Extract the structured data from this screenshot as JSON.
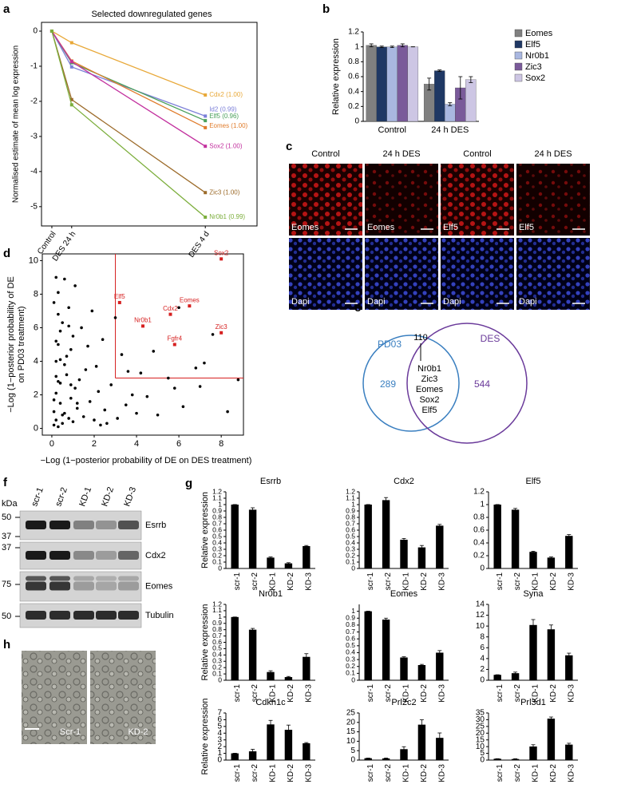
{
  "panel_letters": [
    "a",
    "b",
    "c",
    "d",
    "e",
    "f",
    "g",
    "h"
  ],
  "chart_data": [
    {
      "type": "line",
      "title": "Selected downregulated genes",
      "y_label": "Normalised estimate of mean log expression",
      "categories": [
        "Control",
        "DES 24 h",
        "DES 4 d"
      ],
      "ylim": [
        -5.55,
        0.25
      ],
      "yticks": [
        0,
        -1,
        -2,
        -3,
        -4,
        -5
      ],
      "series": [
        {
          "name": "Cdx2 (1.00)",
          "color": "#e8a838",
          "values": [
            0,
            -0.33,
            -1.82
          ]
        },
        {
          "name": "Id2 (0.99)",
          "color": "#7b7fd8",
          "values": [
            0,
            -1.02,
            -2.42
          ]
        },
        {
          "name": "Elf5 (0.96)",
          "color": "#4aa05a",
          "values": [
            0,
            -0.9,
            -2.55
          ]
        },
        {
          "name": "Eomes (1.00)",
          "color": "#e07b2a",
          "values": [
            0,
            -0.85,
            -2.75
          ]
        },
        {
          "name": "Sox2 (1.00)",
          "color": "#c2309e",
          "values": [
            0,
            -0.87,
            -3.28
          ]
        },
        {
          "name": "Zic3 (1.00)",
          "color": "#9c6b2a",
          "values": [
            0,
            -1.95,
            -4.6
          ]
        },
        {
          "name": "Nr0b1 (0.99)",
          "color": "#7cae3c",
          "values": [
            0,
            -2.1,
            -5.3
          ]
        }
      ]
    },
    {
      "type": "grouped-bar",
      "y_label": "Relative expression",
      "categories": [
        "Control",
        "24 h DES"
      ],
      "ylim": [
        0,
        1.2
      ],
      "yticks": [
        0,
        0.2,
        0.4,
        0.6,
        0.8,
        1,
        1.2
      ],
      "series": [
        {
          "name": "Eomes",
          "color": "#808080",
          "values": [
            1.02,
            0.5
          ],
          "errors": [
            0.02,
            0.08
          ]
        },
        {
          "name": "Elf5",
          "color": "#1f3864",
          "values": [
            1.0,
            0.68
          ],
          "errors": [
            0.01,
            0.01
          ]
        },
        {
          "name": "Nr0b1",
          "color": "#a9b7e0",
          "values": [
            1.0,
            0.23
          ],
          "errors": [
            0.01,
            0.02
          ]
        },
        {
          "name": "Zic3",
          "color": "#7a5a9a",
          "values": [
            1.02,
            0.45
          ],
          "errors": [
            0.02,
            0.15
          ]
        },
        {
          "name": "Sox2",
          "color": "#cdc6e4",
          "values": [
            1.0,
            0.56
          ],
          "errors": [
            0,
            0.04
          ]
        }
      ]
    },
    {
      "type": "scatter",
      "x_label": "−Log (1−posterior probability of DE on DES treatment)",
      "y_label": [
        "−Log (1−posterior probability of DE",
        "on PD03 treatment)"
      ],
      "xlim": [
        -0.45,
        9.05
      ],
      "ylim": [
        -0.4,
        10.4
      ],
      "xticks": [
        0,
        2,
        4,
        6,
        8
      ],
      "yticks": [
        0,
        2,
        4,
        6,
        8,
        10
      ],
      "threshold": 3,
      "threshold_color": "#d62020",
      "series": [
        {
          "color": "#000000",
          "x": [
            0.1,
            0.2,
            0.3,
            0.1,
            0.5,
            0.4,
            0.8,
            0.2,
            0.6,
            1.0,
            1.2,
            0.3,
            0.9,
            1.5,
            0.7,
            1.1,
            2.0,
            0.4,
            1.8,
            2.5,
            0.2,
            0.6,
            1.3,
            3.1,
            0.5,
            2.2,
            0.1,
            0.9,
            1.6,
            3.5,
            0.3,
            4.0,
            1.0,
            2.8,
            0.2,
            0.7,
            5.0,
            1.4,
            3.8,
            0.4,
            6.2,
            2.1,
            0.8,
            4.5,
            1.7,
            7.0,
            0.3,
            3.3,
            5.5,
            2.4,
            0.1,
            0.9,
            8.8,
            6.8,
            0.5,
            1.2,
            4.2,
            7.6,
            3.0,
            2.6,
            0.2,
            0.6,
            1.9,
            5.8,
            8.3,
            0.3,
            1.1,
            4.8,
            7.2,
            6.0,
            0.4,
            0.8,
            2.3,
            3.6,
            0.2
          ],
          "values": [
            0.2,
            0.5,
            0.1,
            1.0,
            0.3,
            1.5,
            0.6,
            2.1,
            0.9,
            0.4,
            1.2,
            2.8,
            1.8,
            0.7,
            3.2,
            2.4,
            0.5,
            4.1,
            1.6,
            1.1,
            5.2,
            3.8,
            2.9,
            0.6,
            6.3,
            2.2,
            7.5,
            4.7,
            3.5,
            1.4,
            6.8,
            0.9,
            5.5,
            2.6,
            3.1,
            4.3,
            0.8,
            6.0,
            2.0,
            5.8,
            1.3,
            3.7,
            7.2,
            1.9,
            4.9,
            2.5,
            8.1,
            4.4,
            3.0,
            5.3,
            1.7,
            2.6,
            2.9,
            3.6,
            0.8,
            1.5,
            3.3,
            5.6,
            6.6,
            0.3,
            4.0,
            8.9,
            7.0,
            2.4,
            1.0,
            5.0,
            8.5,
            4.6,
            3.9,
            7.2,
            2.7,
            6.1,
            0.2,
            3.4,
            9.0
          ]
        },
        {
          "color": "#d62020",
          "labels": [
            "Sox2",
            "Elf5",
            "Eomes",
            "Cdx2",
            "Nr0b1",
            "Zic3",
            "Fgfr4"
          ],
          "x": [
            8.0,
            3.2,
            6.5,
            5.6,
            4.3,
            8.0,
            5.8
          ],
          "values": [
            10.1,
            7.5,
            7.3,
            6.8,
            6.1,
            5.7,
            5.0
          ]
        }
      ]
    },
    {
      "type": "bar",
      "title": "Esrrb",
      "y_label": "Relative expression",
      "categories": [
        "scr-1",
        "scr-2",
        "KD-1",
        "KD-2",
        "KD-3"
      ],
      "color": "#000000",
      "values": [
        1.0,
        0.92,
        0.17,
        0.08,
        0.35
      ],
      "errors": [
        0,
        0.03,
        0.01,
        0.01,
        0.01
      ],
      "ylim": [
        0,
        1.2
      ],
      "yticks": [
        0,
        0.1,
        0.2,
        0.3,
        0.4,
        0.5,
        0.6,
        0.7,
        0.8,
        0.9,
        1,
        1.1,
        1.2
      ]
    },
    {
      "type": "bar",
      "title": "Cdx2",
      "categories": [
        "scr-1",
        "scr-2",
        "KD-1",
        "KD-2",
        "KD-3"
      ],
      "color": "#000000",
      "values": [
        1.0,
        1.07,
        0.45,
        0.33,
        0.67
      ],
      "errors": [
        0,
        0.04,
        0.02,
        0.03,
        0.02
      ],
      "ylim": [
        0,
        1.2
      ],
      "yticks": [
        0,
        0.1,
        0.2,
        0.3,
        0.4,
        0.5,
        0.6,
        0.7,
        0.8,
        0.9,
        1,
        1.1,
        1.2
      ]
    },
    {
      "type": "bar",
      "title": "Elf5",
      "categories": [
        "scr-1",
        "scr-2",
        "KD-1",
        "KD-2",
        "KD-3"
      ],
      "color": "#000000",
      "values": [
        1.0,
        0.92,
        0.26,
        0.17,
        0.51
      ],
      "errors": [
        0,
        0.02,
        0.01,
        0.01,
        0.02
      ],
      "ylim": [
        0,
        1.2
      ],
      "yticks": [
        0,
        0.2,
        0.4,
        0.6,
        0.8,
        1,
        1.2
      ]
    },
    {
      "type": "bar",
      "title": "Nr0b1",
      "y_label": "Relative expression",
      "categories": [
        "scr-1",
        "scr-2",
        "KD-1",
        "KD-2",
        "KD-3"
      ],
      "color": "#000000",
      "values": [
        1.0,
        0.8,
        0.13,
        0.05,
        0.37
      ],
      "errors": [
        0,
        0.02,
        0.02,
        0.01,
        0.05
      ],
      "ylim": [
        0,
        1.2
      ],
      "yticks": [
        0,
        0.1,
        0.2,
        0.3,
        0.4,
        0.5,
        0.6,
        0.7,
        0.8,
        0.9,
        1,
        1.1,
        1.2
      ]
    },
    {
      "type": "bar",
      "title": "Eomes",
      "categories": [
        "scr-1",
        "scr-2",
        "KD-1",
        "KD-2",
        "KD-3"
      ],
      "color": "#000000",
      "values": [
        1.0,
        0.88,
        0.33,
        0.22,
        0.4
      ],
      "errors": [
        0,
        0.02,
        0.01,
        0.01,
        0.03
      ],
      "ylim": [
        0,
        1.1
      ],
      "yticks": [
        0,
        0.1,
        0.2,
        0.3,
        0.4,
        0.5,
        0.6,
        0.7,
        0.8,
        0.9,
        1
      ]
    },
    {
      "type": "bar",
      "title": "Syna",
      "categories": [
        "scr-1",
        "scr-2",
        "KD-1",
        "KD-2",
        "KD-3"
      ],
      "color": "#000000",
      "values": [
        1.0,
        1.3,
        10.2,
        9.4,
        4.6
      ],
      "errors": [
        0,
        0.2,
        1.0,
        0.8,
        0.4
      ],
      "ylim": [
        0,
        14
      ],
      "yticks": [
        0,
        2,
        4,
        6,
        8,
        10,
        12,
        14
      ]
    },
    {
      "type": "bar",
      "title": "Cdkn1c",
      "y_label": "Relative expression",
      "categories": [
        "scr-1",
        "scr-2",
        "KD-1",
        "KD-2",
        "KD-3"
      ],
      "color": "#000000",
      "values": [
        1.0,
        1.3,
        5.3,
        4.5,
        2.5
      ],
      "errors": [
        0,
        0.3,
        0.6,
        0.7,
        0.1
      ],
      "ylim": [
        0,
        7
      ],
      "yticks": [
        0,
        1,
        2,
        3,
        4,
        5,
        6,
        7
      ]
    },
    {
      "type": "bar",
      "title": "Prl2c2",
      "categories": [
        "scr-1",
        "scr-2",
        "KD-1",
        "KD-2",
        "KD-3"
      ],
      "color": "#000000",
      "values": [
        1.0,
        0.9,
        5.8,
        18.8,
        11.8
      ],
      "errors": [
        0,
        0.2,
        1.3,
        2.6,
        2.6
      ],
      "ylim": [
        0,
        25
      ],
      "yticks": [
        0,
        5,
        10,
        15,
        20,
        25
      ]
    },
    {
      "type": "bar",
      "title": "Prl3d1",
      "categories": [
        "scr-1",
        "scr-2",
        "KD-1",
        "KD-2",
        "KD-3"
      ],
      "color": "#000000",
      "values": [
        1.0,
        0.8,
        10.1,
        30.8,
        11.5
      ],
      "errors": [
        0,
        0.2,
        1.3,
        1.2,
        1.0
      ],
      "ylim": [
        0,
        35
      ],
      "yticks": [
        0,
        5,
        10,
        15,
        20,
        25,
        30,
        35
      ]
    }
  ],
  "images_c": {
    "headers": [
      "Control",
      "24 h DES",
      "Control",
      "24 h DES"
    ],
    "top_labels": [
      "Eomes",
      "Eomes",
      "Elf5",
      "Elf5"
    ],
    "bottom_labels": [
      "Dapi",
      "Dapi",
      "Dapi",
      "Dapi"
    ]
  },
  "venn": {
    "left": "PD03",
    "right": "DES",
    "left_only": 289,
    "overlap": 110,
    "right_only": 544,
    "genes": [
      "Nr0b1",
      "Zic3",
      "Eomes",
      "Sox2",
      "Elf5"
    ]
  },
  "blot": {
    "unit": "kDa",
    "lanes": [
      "scr-1",
      "scr-2",
      "KD-1",
      "KD-2",
      "KD-3"
    ],
    "rows": [
      {
        "protein": "Esrrb",
        "markers": [
          50,
          37
        ]
      },
      {
        "protein": "Cdx2",
        "markers": [
          37
        ]
      },
      {
        "protein": "Eomes",
        "markers": [
          75
        ]
      },
      {
        "protein": "Tubulin",
        "markers": [
          50
        ]
      }
    ]
  },
  "images_h": {
    "labels": [
      "Scr-1",
      "KD-2"
    ]
  }
}
